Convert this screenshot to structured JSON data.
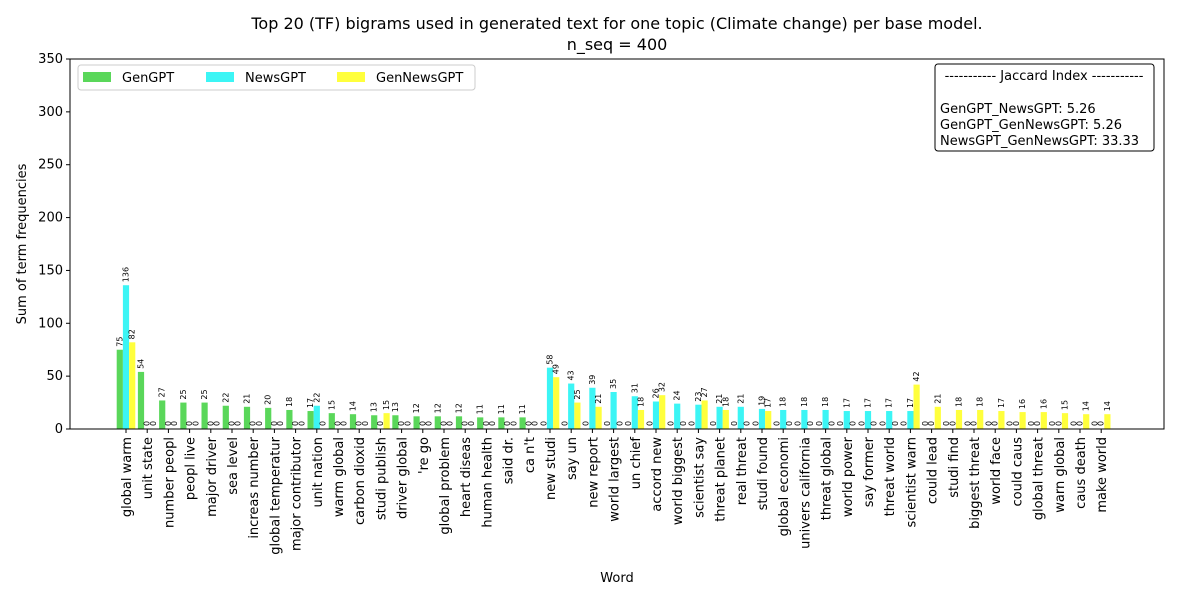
{
  "chart_data": {
    "type": "bar",
    "title_line1": "Top 20 (TF) bigrams used in generated text for one topic (Climate change) per base model.",
    "title_line2": "n_seq = 400",
    "xlabel": "Word",
    "ylabel": "Sum of term frequencies",
    "ylim": [
      0,
      350
    ],
    "yticks": [
      "0",
      "50",
      "100",
      "150",
      "200",
      "250",
      "300",
      "350"
    ],
    "grid": false,
    "legend_position": "top-left",
    "categories": [
      "global warm",
      "unit state",
      "number peopl",
      "peopl live",
      "major driver",
      "sea level",
      "increas number",
      "global temperatur",
      "major contributor",
      "unit nation",
      "warm global",
      "carbon dioxid",
      "studi publish",
      "driver global",
      "'re go",
      "global problem",
      "heart diseas",
      "human health",
      "said dr.",
      "ca n't",
      "new studi",
      "say un",
      "new report",
      "world largest",
      "un chief",
      "accord new",
      "world biggest",
      "scientist say",
      "threat planet",
      "real threat",
      "studi found",
      "global economi",
      "univers california",
      "threat global",
      "world power",
      "say former",
      "threat world",
      "scientist warn",
      "could lead",
      "studi find",
      "biggest threat",
      "world face",
      "could caus",
      "global threat",
      "warn global",
      "caus death",
      "make world"
    ],
    "series": [
      {
        "name": "GenGPT",
        "color": "#5ad75a",
        "values": [
          75,
          54,
          27,
          25,
          25,
          22,
          21,
          20,
          18,
          17,
          15,
          14,
          13,
          13,
          12,
          12,
          12,
          11,
          11,
          11,
          0,
          0,
          0,
          0,
          0,
          0,
          0,
          0,
          0,
          0,
          0,
          0,
          0,
          0,
          0,
          0,
          0,
          0,
          0,
          0,
          0,
          0,
          0,
          0,
          0,
          0,
          0
        ]
      },
      {
        "name": "NewsGPT",
        "color": "#3cf5f5",
        "values": [
          136,
          0,
          0,
          0,
          0,
          0,
          0,
          0,
          0,
          22,
          0,
          0,
          0,
          0,
          0,
          0,
          0,
          0,
          0,
          0,
          58,
          43,
          39,
          35,
          31,
          26,
          24,
          23,
          21,
          21,
          19,
          18,
          18,
          18,
          17,
          17,
          17,
          17,
          0,
          0,
          0,
          0,
          0,
          0,
          0,
          0,
          0
        ]
      },
      {
        "name": "GenNewsGPT",
        "color": "#ffff3c",
        "values": [
          82,
          0,
          0,
          0,
          0,
          0,
          0,
          0,
          0,
          0,
          0,
          0,
          15,
          0,
          0,
          0,
          0,
          0,
          0,
          0,
          49,
          25,
          21,
          0,
          18,
          32,
          0,
          27,
          18,
          0,
          17,
          0,
          0,
          0,
          0,
          0,
          0,
          42,
          21,
          18,
          18,
          17,
          16,
          16,
          15,
          14,
          14
        ]
      }
    ],
    "jaccard_box": {
      "header": "----------- Jaccard Index -----------",
      "lines": [
        "GenGPT_NewsGPT: 5.26",
        "GenGPT_GenNewsGPT: 5.26",
        "NewsGPT_GenNewsGPT: 33.33"
      ]
    }
  }
}
